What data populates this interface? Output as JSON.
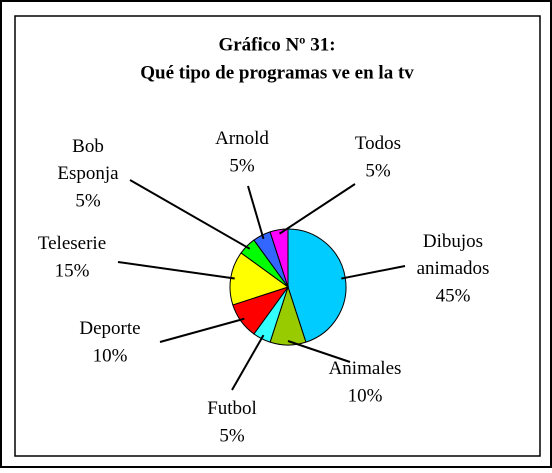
{
  "chart_data": {
    "type": "pie",
    "title": [
      "Gráfico Nº 31:",
      "Qué tipo de programas ve en la tv"
    ],
    "categories": [
      "Dibujos animados",
      "Animales",
      "Futbol",
      "Deporte",
      "Teleserie",
      "Bob Esponja",
      "Arnold",
      "Todos"
    ],
    "values": [
      45,
      10,
      5,
      10,
      15,
      5,
      5,
      5
    ],
    "value_labels": [
      "45%",
      "10%",
      "5%",
      "10%",
      "15%",
      "5%",
      "5%",
      "5%"
    ],
    "colors": [
      "#00ccff",
      "#99cc00",
      "#33ffff",
      "#ff0000",
      "#ffff00",
      "#00ff00",
      "#3366ff",
      "#ff00ff"
    ]
  }
}
